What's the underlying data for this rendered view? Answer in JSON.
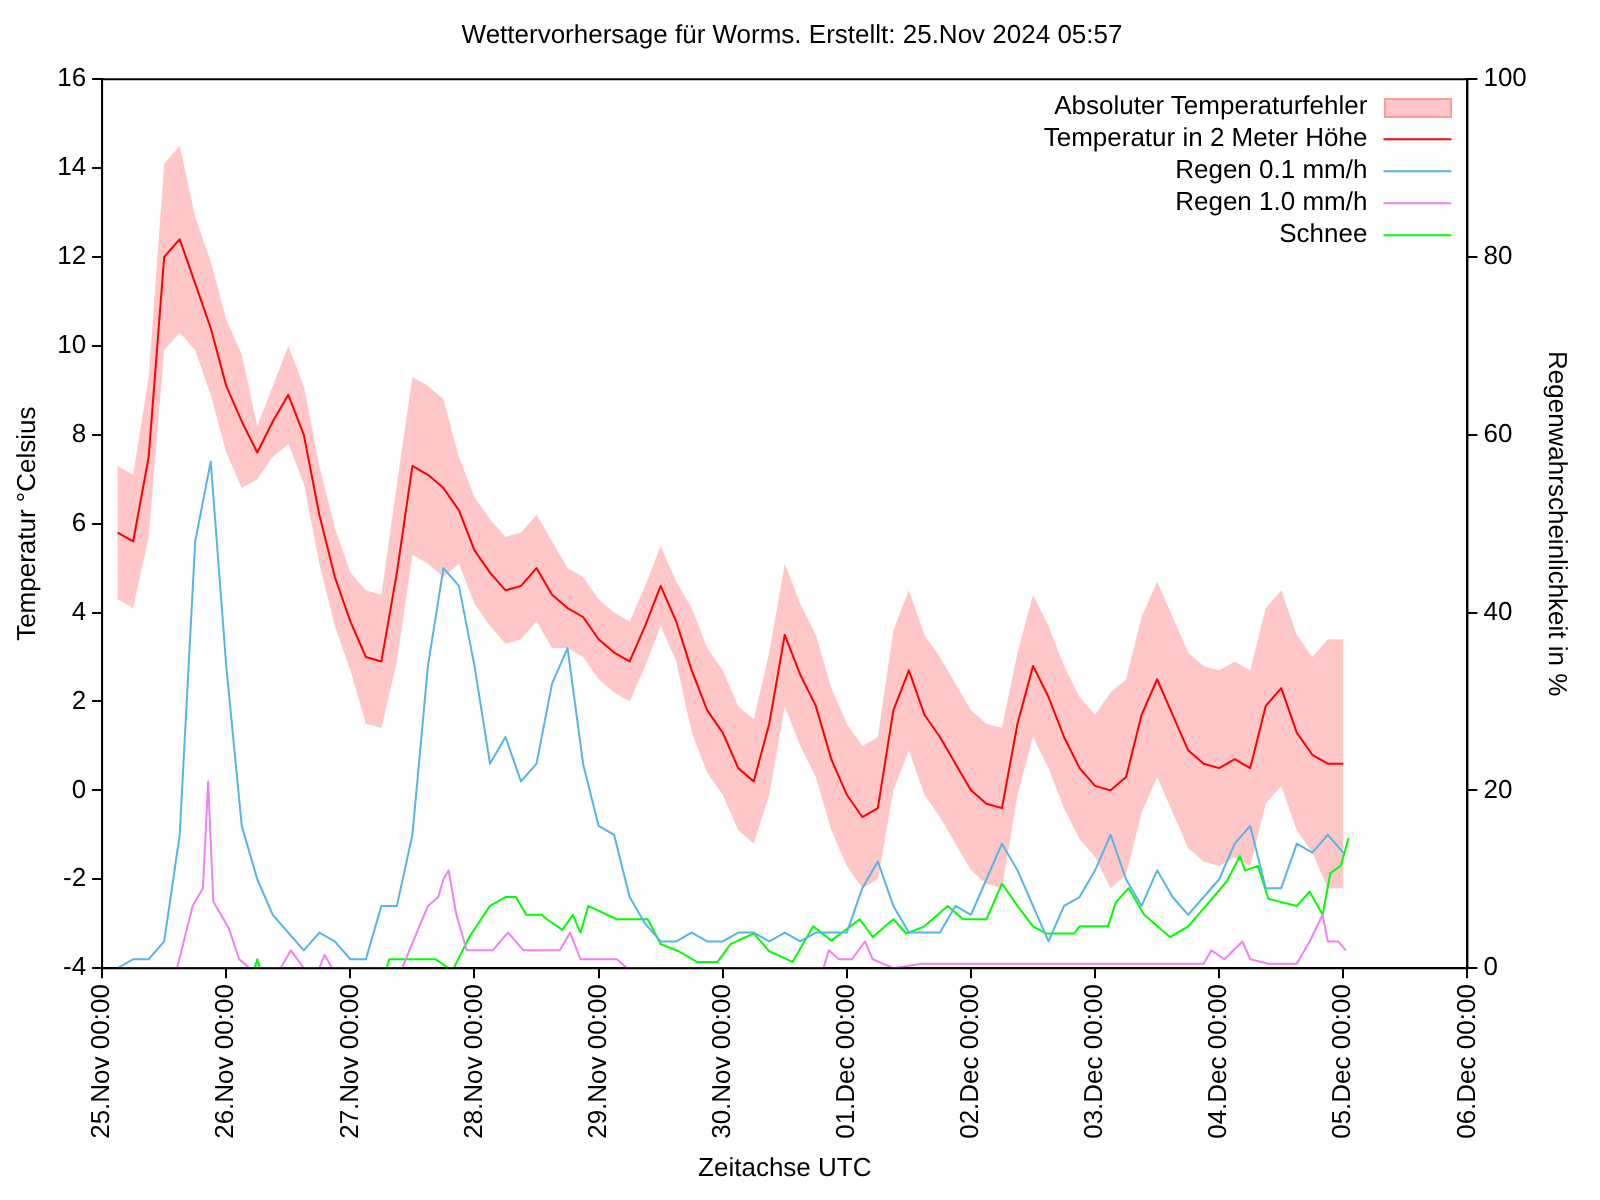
{
  "chart_data": {
    "type": "line",
    "title": "Wettervorhersage für Worms. Erstellt: 25.Nov 2024 05:57",
    "xlabel": "Zeitachse UTC",
    "ylabel": "Temperatur °Celsius",
    "y2label": "Regenwahrscheinlichkeit in %",
    "x": [
      "2024-11-25T03:00",
      "2024-11-25T06:00",
      "2024-11-25T09:00",
      "2024-11-25T12:00",
      "2024-11-25T15:00",
      "2024-11-25T18:00",
      "2024-11-25T21:00",
      "2024-11-26T00:00",
      "2024-11-26T03:00",
      "2024-11-26T06:00",
      "2024-11-26T09:00",
      "2024-11-26T12:00",
      "2024-11-26T15:00",
      "2024-11-26T18:00",
      "2024-11-26T21:00",
      "2024-11-27T00:00",
      "2024-11-27T03:00",
      "2024-11-27T06:00",
      "2024-11-27T09:00",
      "2024-11-27T12:00",
      "2024-11-27T15:00",
      "2024-11-27T18:00",
      "2024-11-27T21:00",
      "2024-11-28T00:00",
      "2024-11-28T03:00",
      "2024-11-28T06:00",
      "2024-11-28T09:00",
      "2024-11-28T12:00",
      "2024-11-28T15:00",
      "2024-11-28T18:00",
      "2024-11-28T21:00",
      "2024-11-29T00:00",
      "2024-11-29T03:00",
      "2024-11-29T06:00",
      "2024-11-29T09:00",
      "2024-11-29T12:00",
      "2024-11-29T15:00",
      "2024-11-29T18:00",
      "2024-11-29T21:00",
      "2024-11-30T00:00",
      "2024-11-30T03:00",
      "2024-11-30T06:00",
      "2024-11-30T09:00",
      "2024-11-30T12:00",
      "2024-11-30T15:00",
      "2024-11-30T18:00",
      "2024-11-30T21:00",
      "2024-12-01T00:00",
      "2024-12-01T03:00",
      "2024-12-01T06:00",
      "2024-12-01T09:00",
      "2024-12-01T12:00",
      "2024-12-01T15:00",
      "2024-12-01T18:00",
      "2024-12-01T21:00",
      "2024-12-02T00:00",
      "2024-12-02T03:00",
      "2024-12-02T06:00",
      "2024-12-02T09:00",
      "2024-12-02T12:00",
      "2024-12-02T15:00",
      "2024-12-02T18:00",
      "2024-12-02T21:00",
      "2024-12-03T00:00",
      "2024-12-03T03:00",
      "2024-12-03T06:00",
      "2024-12-03T09:00",
      "2024-12-03T12:00",
      "2024-12-03T15:00",
      "2024-12-03T18:00",
      "2024-12-03T21:00",
      "2024-12-04T00:00",
      "2024-12-04T03:00",
      "2024-12-04T06:00",
      "2024-12-04T09:00",
      "2024-12-04T12:00",
      "2024-12-04T15:00",
      "2024-12-04T18:00",
      "2024-12-04T21:00",
      "2024-12-05T00:00"
    ],
    "xlim": [
      "2024-11-25T00:00",
      "2024-12-06T00:00"
    ],
    "xticks": [
      {
        "value": "2024-11-25T00:00",
        "label": "25.Nov 00:00"
      },
      {
        "value": "2024-11-26T00:00",
        "label": "26.Nov 00:00"
      },
      {
        "value": "2024-11-27T00:00",
        "label": "27.Nov 00:00"
      },
      {
        "value": "2024-11-28T00:00",
        "label": "28.Nov 00:00"
      },
      {
        "value": "2024-11-29T00:00",
        "label": "29.Nov 00:00"
      },
      {
        "value": "2024-11-30T00:00",
        "label": "30.Nov 00:00"
      },
      {
        "value": "2024-12-01T00:00",
        "label": "01.Dec 00:00"
      },
      {
        "value": "2024-12-02T00:00",
        "label": "02.Dec 00:00"
      },
      {
        "value": "2024-12-03T00:00",
        "label": "03.Dec 00:00"
      },
      {
        "value": "2024-12-04T00:00",
        "label": "04.Dec 00:00"
      },
      {
        "value": "2024-12-05T00:00",
        "label": "05.Dec 00:00"
      },
      {
        "value": "2024-12-06T00:00",
        "label": "06.Dec 00:00"
      }
    ],
    "ylim": [
      -4,
      16
    ],
    "yticks": [
      -4,
      -2,
      0,
      2,
      4,
      6,
      8,
      10,
      12,
      14,
      16
    ],
    "y2lim": [
      0,
      100
    ],
    "y2ticks": [
      0,
      20,
      40,
      60,
      80,
      100
    ],
    "annotations": [
      "Absoluter Temperaturfehler"
    ],
    "grid": false,
    "legend": "top right",
    "marker": "none",
    "line_style": "solid",
    "series": [
      {
        "name": "Temperatur in 2 Meter Höhe",
        "color": "#ff0000",
        "values": [
          5.8,
          5.6,
          7.5,
          12.0,
          12.4,
          11.4,
          10.4,
          9.1,
          8.3,
          7.6,
          8.3,
          8.9,
          8.0,
          6.2,
          4.8,
          3.8,
          3.0,
          2.9,
          4.9,
          7.3,
          7.1,
          6.8,
          6.3,
          5.4,
          4.9,
          4.5,
          4.6,
          5.0,
          4.4,
          4.1,
          3.9,
          3.4,
          3.1,
          2.9,
          3.7,
          4.6,
          3.8,
          2.7,
          1.8,
          1.3,
          0.5,
          0.2,
          1.5,
          3.5,
          2.6,
          1.9,
          0.7,
          -0.1,
          -0.6,
          -0.4,
          1.8,
          2.7,
          1.7,
          1.2,
          0.6,
          0.0,
          -0.3,
          -0.4,
          1.5,
          2.8,
          2.1,
          1.2,
          0.5,
          0.1,
          0.0,
          0.3,
          1.7,
          2.5,
          1.7,
          0.9,
          0.6,
          0.5,
          0.7,
          0.5,
          1.9,
          2.3,
          1.3,
          0.8,
          0.6,
          0.6
        ],
        "lower": [
          4.3,
          4.1,
          5.7,
          9.9,
          10.3,
          9.9,
          8.9,
          7.6,
          6.8,
          7.0,
          7.5,
          7.8,
          6.9,
          5.1,
          3.7,
          2.7,
          1.5,
          1.4,
          2.9,
          5.3,
          5.1,
          4.8,
          5.1,
          4.2,
          3.7,
          3.3,
          3.4,
          3.8,
          3.2,
          3.2,
          3.0,
          2.5,
          2.2,
          2.0,
          2.8,
          3.7,
          2.9,
          1.3,
          0.4,
          -0.1,
          -0.9,
          -1.2,
          -0.1,
          1.9,
          1.0,
          0.3,
          -0.9,
          -1.7,
          -2.2,
          -2.0,
          0.0,
          0.9,
          -0.1,
          -0.6,
          -1.2,
          -1.8,
          -2.1,
          -2.2,
          -0.1,
          1.2,
          0.5,
          -0.4,
          -1.1,
          -1.5,
          -2.2,
          -1.9,
          -0.5,
          0.3,
          -0.5,
          -1.3,
          -1.6,
          -1.7,
          -1.5,
          -1.7,
          -0.3,
          0.1,
          -0.9,
          -1.4,
          -2.2,
          -2.2
        ],
        "upper": [
          7.3,
          7.1,
          9.3,
          14.1,
          14.5,
          12.9,
          11.9,
          10.6,
          9.8,
          8.2,
          9.1,
          10.0,
          9.1,
          7.3,
          5.9,
          4.9,
          4.5,
          4.4,
          6.9,
          9.3,
          9.1,
          8.8,
          7.5,
          6.6,
          6.1,
          5.7,
          5.8,
          6.2,
          5.6,
          5.0,
          4.8,
          4.3,
          4.0,
          3.8,
          4.6,
          5.5,
          4.7,
          4.1,
          3.2,
          2.7,
          1.9,
          1.6,
          3.1,
          5.1,
          4.2,
          3.5,
          2.3,
          1.5,
          1.0,
          1.2,
          3.6,
          4.5,
          3.5,
          3.0,
          2.4,
          1.8,
          1.5,
          1.4,
          3.1,
          4.4,
          3.7,
          2.8,
          2.1,
          1.7,
          2.2,
          2.5,
          3.9,
          4.7,
          3.9,
          3.1,
          2.8,
          2.7,
          2.9,
          2.7,
          4.1,
          4.5,
          3.5,
          3.0,
          3.4,
          3.4
        ]
      },
      {
        "name": "Regen 0.1 mm/h",
        "color": "#56b4e9",
        "axis": "y2",
        "values": [
          0,
          1,
          1,
          3,
          15,
          48,
          57,
          34,
          16,
          10,
          6,
          4,
          2,
          4,
          3,
          1,
          1,
          7,
          7,
          15,
          34,
          45,
          43,
          34,
          23,
          26,
          21,
          23,
          32,
          36,
          23,
          16,
          15,
          8,
          5,
          3,
          3,
          4,
          3,
          3,
          4,
          4,
          3,
          4,
          3,
          4,
          4,
          4,
          9,
          12,
          7,
          4,
          4,
          4,
          7,
          6,
          10,
          14,
          11,
          7,
          3,
          7,
          8,
          11,
          15,
          10,
          7,
          11,
          8,
          6,
          8,
          10,
          14,
          16,
          9,
          9,
          14,
          13,
          15,
          13
        ]
      },
      {
        "name": "Regen 1.0 mm/h",
        "color": "#ee82ee",
        "axis": "y2",
        "x": [
          "2024-11-25T03:00",
          "2024-11-25T14:30",
          "2024-11-25T17:30",
          "2024-11-25T19:30",
          "2024-11-25T20:30",
          "2024-11-25T21:30",
          "2024-11-26T00:30",
          "2024-11-26T02:30",
          "2024-11-26T04:30",
          "2024-11-26T10:30",
          "2024-11-26T12:30",
          "2024-11-26T15:00",
          "2024-11-26T18:00",
          "2024-11-26T19:00",
          "2024-11-26T20:30",
          "2024-11-27T10:00",
          "2024-11-27T15:00",
          "2024-11-27T17:00",
          "2024-11-27T18:00",
          "2024-11-27T19:00",
          "2024-11-27T20:30",
          "2024-11-27T22:30",
          "2024-11-28T03:30",
          "2024-11-28T06:30",
          "2024-11-28T09:30",
          "2024-11-28T16:30",
          "2024-11-28T18:30",
          "2024-11-28T20:30",
          "2024-11-29T03:30",
          "2024-11-29T05:30",
          "2024-11-30T19:30",
          "2024-11-30T20:30",
          "2024-11-30T22:30",
          "2024-12-01T01:00",
          "2024-12-01T03:30",
          "2024-12-01T05:00",
          "2024-12-01T09:00",
          "2024-12-01T14:30",
          "2024-12-03T21:00",
          "2024-12-03T22:30",
          "2024-12-04T01:00",
          "2024-12-04T04:30",
          "2024-12-04T06:00",
          "2024-12-04T09:30",
          "2024-12-04T15:00",
          "2024-12-04T17:30",
          "2024-12-04T20:00",
          "2024-12-04T21:00",
          "2024-12-04T23:00",
          "2024-12-05T00:30"
        ],
        "values": [
          0,
          0,
          7,
          9,
          21,
          7.5,
          4.5,
          1,
          0,
          0,
          2,
          0,
          0,
          1.5,
          0,
          0,
          7,
          8,
          10,
          11,
          6,
          2,
          2,
          4,
          2,
          2,
          4,
          1,
          1,
          0,
          0,
          2,
          1,
          1,
          3,
          1,
          0,
          0.5,
          0.5,
          2,
          1,
          3,
          1,
          0.5,
          0.5,
          3,
          6,
          3,
          3,
          2
        ]
      },
      {
        "name": "Schnee",
        "color": "#00ff00",
        "axis": "y2",
        "x": [
          "2024-11-25T03:00",
          "2024-11-26T05:30",
          "2024-11-26T06:00",
          "2024-11-26T06:30",
          "2024-11-27T07:00",
          "2024-11-27T07:30",
          "2024-11-27T14:00",
          "2024-11-27T16:30",
          "2024-11-27T19:00",
          "2024-11-27T20:00",
          "2024-11-27T23:00",
          "2024-11-28T03:00",
          "2024-11-28T06:00",
          "2024-11-28T08:00",
          "2024-11-28T10:00",
          "2024-11-28T13:00",
          "2024-11-28T14:00",
          "2024-11-28T17:00",
          "2024-11-28T19:00",
          "2024-11-28T20:30",
          "2024-11-28T22:00",
          "2024-11-29T03:30",
          "2024-11-29T09:30",
          "2024-11-29T12:00",
          "2024-11-29T15:30",
          "2024-11-29T19:00",
          "2024-11-29T23:00",
          "2024-11-30T01:30",
          "2024-11-30T06:00",
          "2024-11-30T09:00",
          "2024-11-30T13:30",
          "2024-11-30T17:30",
          "2024-11-30T21:00",
          "2024-12-01T02:30",
          "2024-12-01T05:00",
          "2024-12-01T09:00",
          "2024-12-01T11:30",
          "2024-12-01T15:00",
          "2024-12-01T19:30",
          "2024-12-01T22:30",
          "2024-12-02T03:00",
          "2024-12-02T06:00",
          "2024-12-02T09:00",
          "2024-12-02T12:00",
          "2024-12-02T14:30",
          "2024-12-02T20:00",
          "2024-12-02T21:00",
          "2024-12-03T02:30",
          "2024-12-03T04:00",
          "2024-12-03T06:30",
          "2024-12-03T09:30",
          "2024-12-03T14:30",
          "2024-12-03T18:00",
          "2024-12-03T22:00",
          "2024-12-04T01:30",
          "2024-12-04T04:00",
          "2024-12-04T05:00",
          "2024-12-04T07:30",
          "2024-12-04T09:30",
          "2024-12-04T15:00",
          "2024-12-04T17:30",
          "2024-12-04T20:00",
          "2024-12-04T21:30",
          "2024-12-04T23:30",
          "2024-12-05T01:00"
        ],
        "values": [
          0,
          0,
          1,
          0,
          0,
          1,
          1,
          1,
          0,
          0,
          3.5,
          7,
          8,
          8,
          6,
          6,
          5.5,
          4.3,
          6,
          4,
          7,
          5.5,
          5.5,
          2.7,
          1.9,
          0.7,
          0.7,
          2.7,
          3.9,
          1.9,
          0.7,
          4.7,
          3.1,
          5.5,
          3.5,
          5.5,
          3.9,
          4.7,
          7,
          5.5,
          5.5,
          9.5,
          7,
          4.7,
          3.9,
          3.9,
          4.7,
          4.7,
          7.4,
          9,
          6,
          3.5,
          4.7,
          7.4,
          9.8,
          12.6,
          11,
          11.5,
          7.8,
          7,
          8.6,
          6,
          10.7,
          11.5,
          14.6
        ]
      }
    ]
  }
}
